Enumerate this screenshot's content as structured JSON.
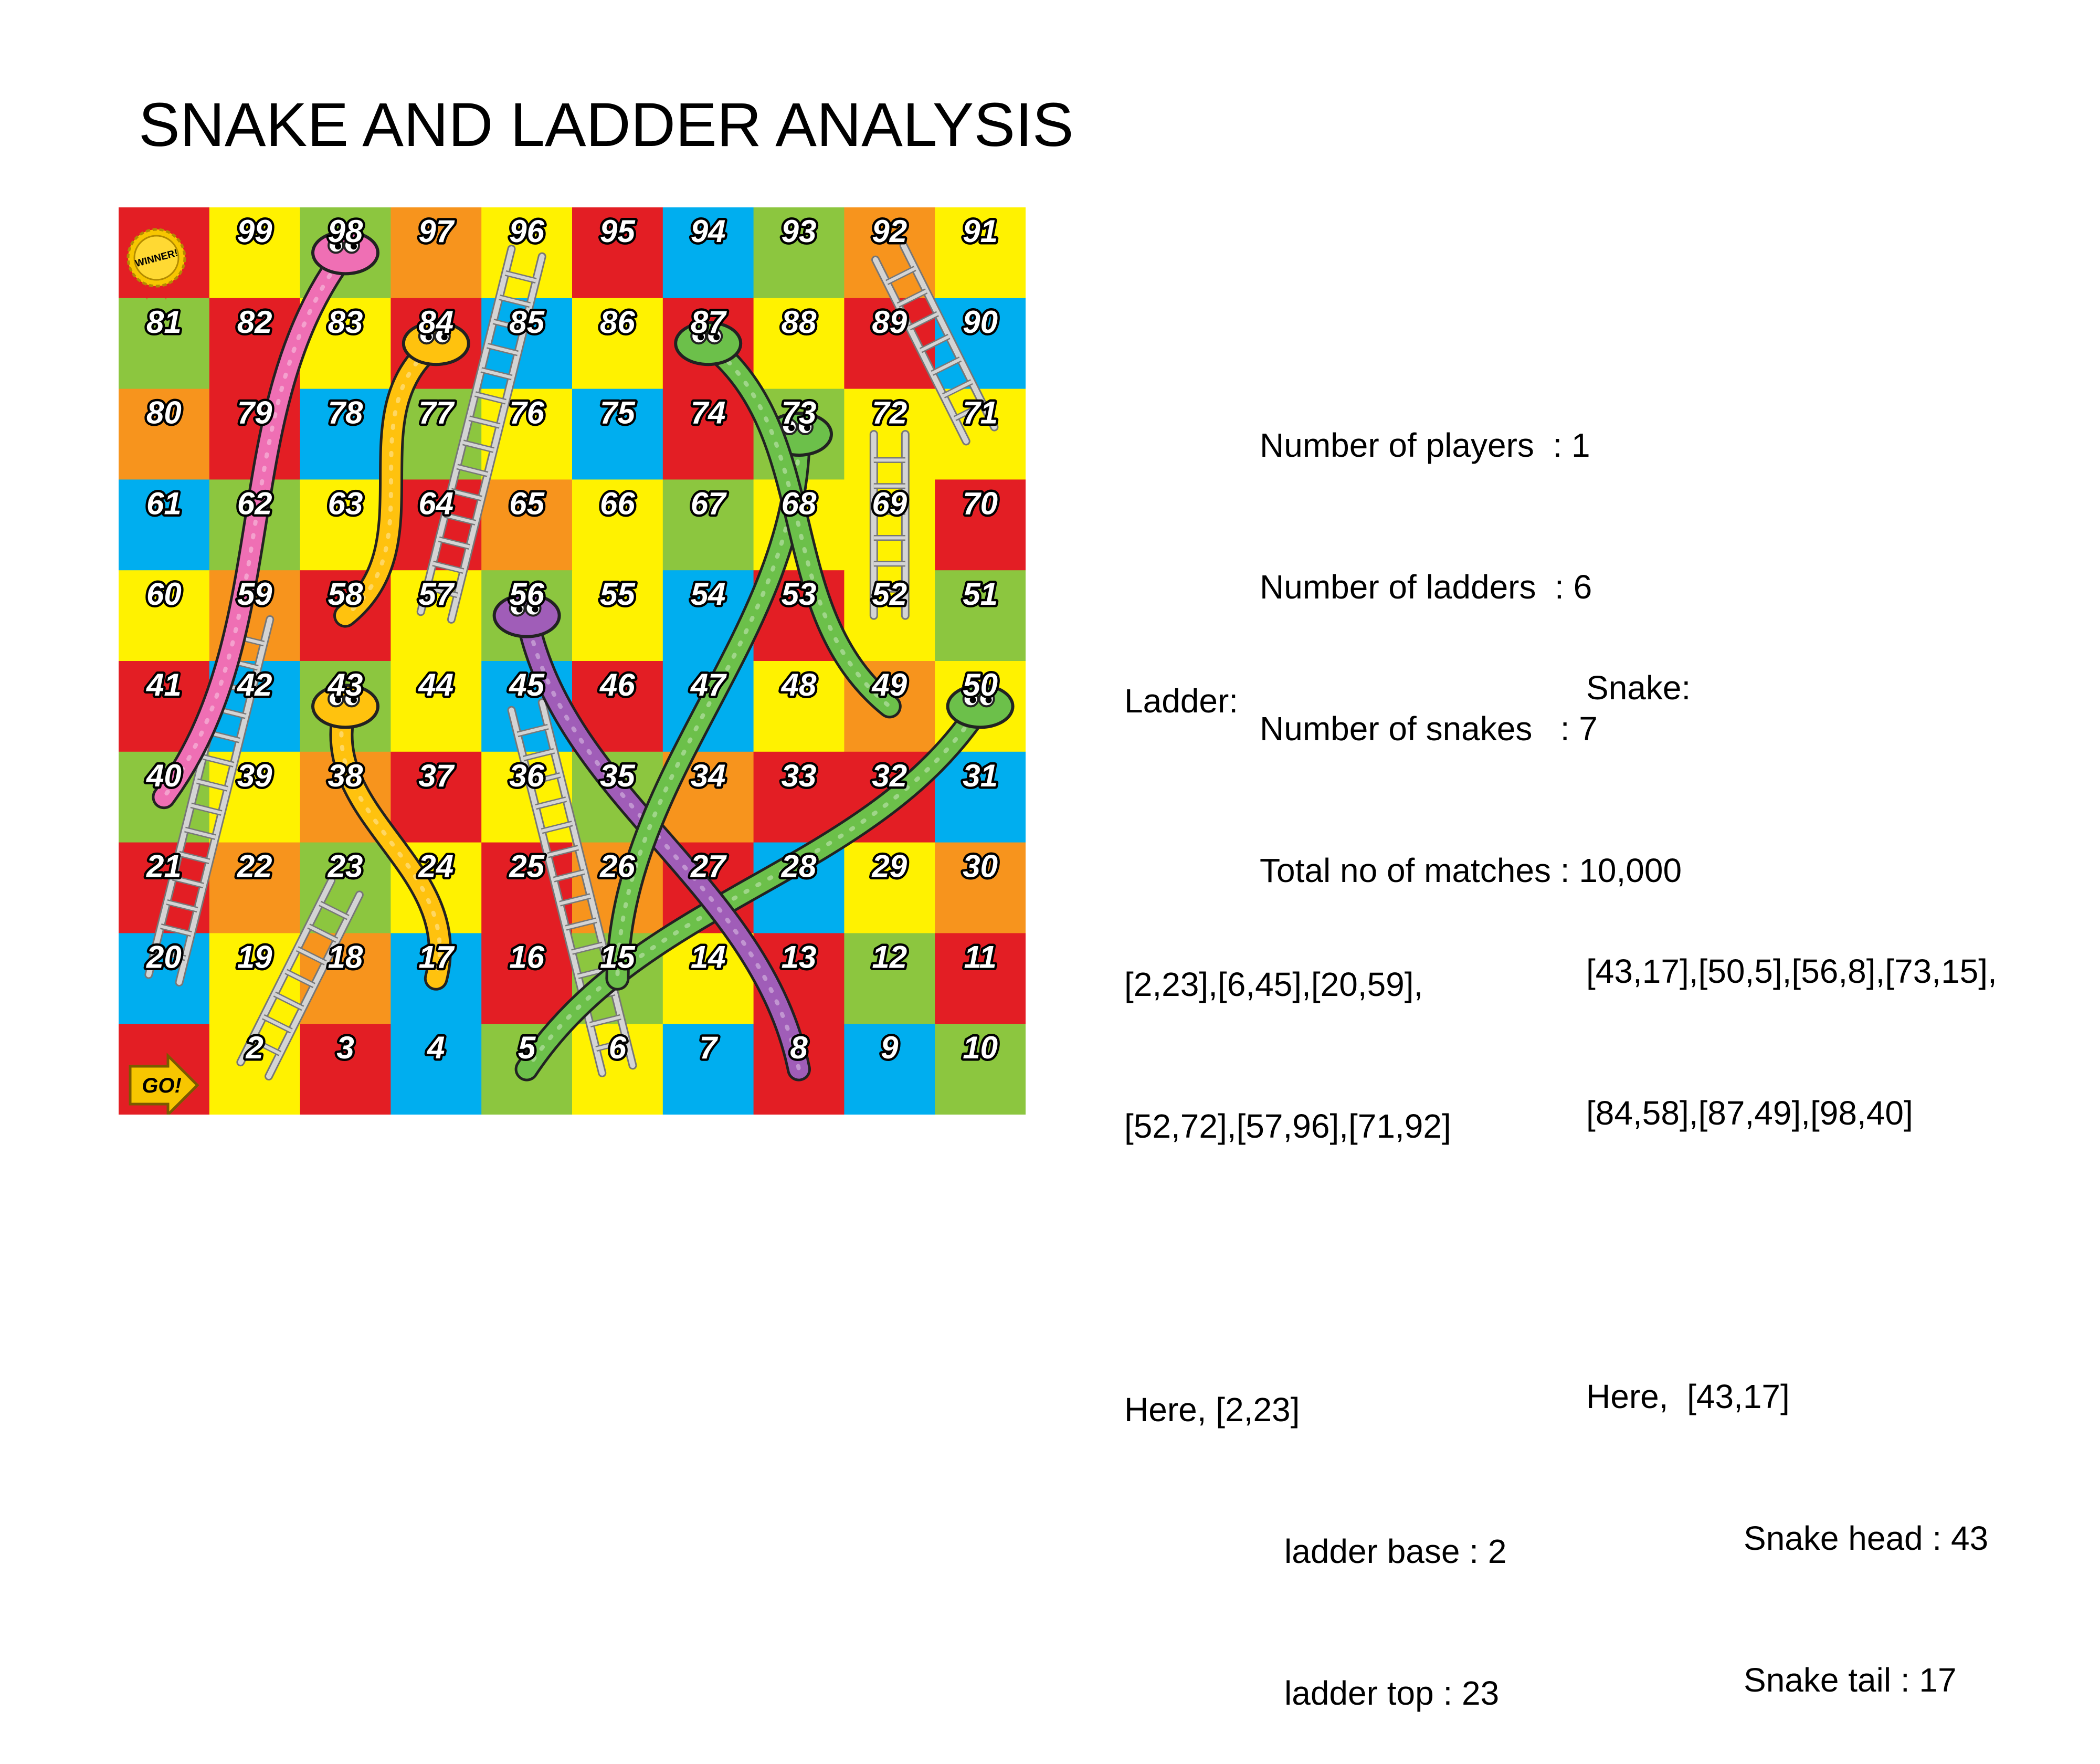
{
  "title": "SNAKE AND LADDER ANALYSIS",
  "stats": [
    {
      "label": "Number of players",
      "sep": "  : ",
      "value": "1"
    },
    {
      "label": "Number of ladders",
      "sep": "  : ",
      "value": "6"
    },
    {
      "label": "Number of snakes",
      "sep": "   : ",
      "value": "7"
    },
    {
      "label": "Total no of matches",
      "sep": " : ",
      "value": "10,000"
    }
  ],
  "ladder_section": {
    "heading": "Ladder:",
    "list_line1": "[2,23],[6,45],[20,59],",
    "list_line2": "[52,72],[57,96],[71,92]",
    "here": "Here, [2,23]",
    "base": "ladder base : 2",
    "top": "ladder top : 23"
  },
  "snake_section": {
    "heading": "Snake:",
    "list_line1": "[43,17],[50,5],[56,8],[73,15],",
    "list_line2": "[84,58],[87,49],[98,40]",
    "here": "Here,  [43,17]",
    "head": "Snake head : 43",
    "tail": "Snake tail : 17"
  },
  "board": {
    "winner_badge": "WINNER!",
    "go_label": "GO!",
    "colors": {
      "red": "#e31e24",
      "yellow": "#fff200",
      "green": "#8cc63f",
      "blue": "#00aeef",
      "orange": "#f7941d",
      "ladder": "#d4d4d4",
      "ladder_edge": "#777777"
    },
    "cell_colors": [
      [
        "red",
        "yellow",
        "green",
        "orange",
        "yellow",
        "red",
        "blue",
        "green",
        "orange",
        "yellow"
      ],
      [
        "green",
        "red",
        "yellow",
        "red",
        "blue",
        "yellow",
        "red",
        "yellow",
        "red",
        "blue"
      ],
      [
        "orange",
        "red",
        "blue",
        "green",
        "yellow",
        "blue",
        "red",
        "green",
        "yellow",
        "yellow"
      ],
      [
        "blue",
        "green",
        "yellow",
        "red",
        "orange",
        "yellow",
        "green",
        "yellow",
        "yellow",
        "red"
      ],
      [
        "yellow",
        "orange",
        "red",
        "yellow",
        "green",
        "yellow",
        "blue",
        "red",
        "yellow",
        "green"
      ],
      [
        "red",
        "blue",
        "green",
        "yellow",
        "blue",
        "red",
        "blue",
        "yellow",
        "orange",
        "yellow"
      ],
      [
        "green",
        "yellow",
        "orange",
        "red",
        "yellow",
        "green",
        "orange",
        "red",
        "red",
        "blue"
      ],
      [
        "red",
        "orange",
        "green",
        "yellow",
        "red",
        "orange",
        "red",
        "blue",
        "yellow",
        "orange"
      ],
      [
        "blue",
        "yellow",
        "orange",
        "blue",
        "red",
        "green",
        "yellow",
        "red",
        "green",
        "red"
      ],
      [
        "red",
        "yellow",
        "red",
        "blue",
        "green",
        "yellow",
        "blue",
        "red",
        "blue",
        "green"
      ]
    ],
    "ladders": [
      {
        "from": 2,
        "to": 23
      },
      {
        "from": 6,
        "to": 45
      },
      {
        "from": 20,
        "to": 59
      },
      {
        "from": 52,
        "to": 72
      },
      {
        "from": 57,
        "to": 96
      },
      {
        "from": 71,
        "to": 92
      }
    ],
    "snakes": [
      {
        "head": 43,
        "tail": 17,
        "color": "#ffc20e"
      },
      {
        "head": 50,
        "tail": 5,
        "color": "#6cc04a"
      },
      {
        "head": 56,
        "tail": 8,
        "color": "#a05db8"
      },
      {
        "head": 73,
        "tail": 15,
        "color": "#6cc04a"
      },
      {
        "head": 84,
        "tail": 58,
        "color": "#ffc20e"
      },
      {
        "head": 87,
        "tail": 49,
        "color": "#6cc04a"
      },
      {
        "head": 98,
        "tail": 40,
        "color": "#ef6fb4"
      }
    ]
  }
}
